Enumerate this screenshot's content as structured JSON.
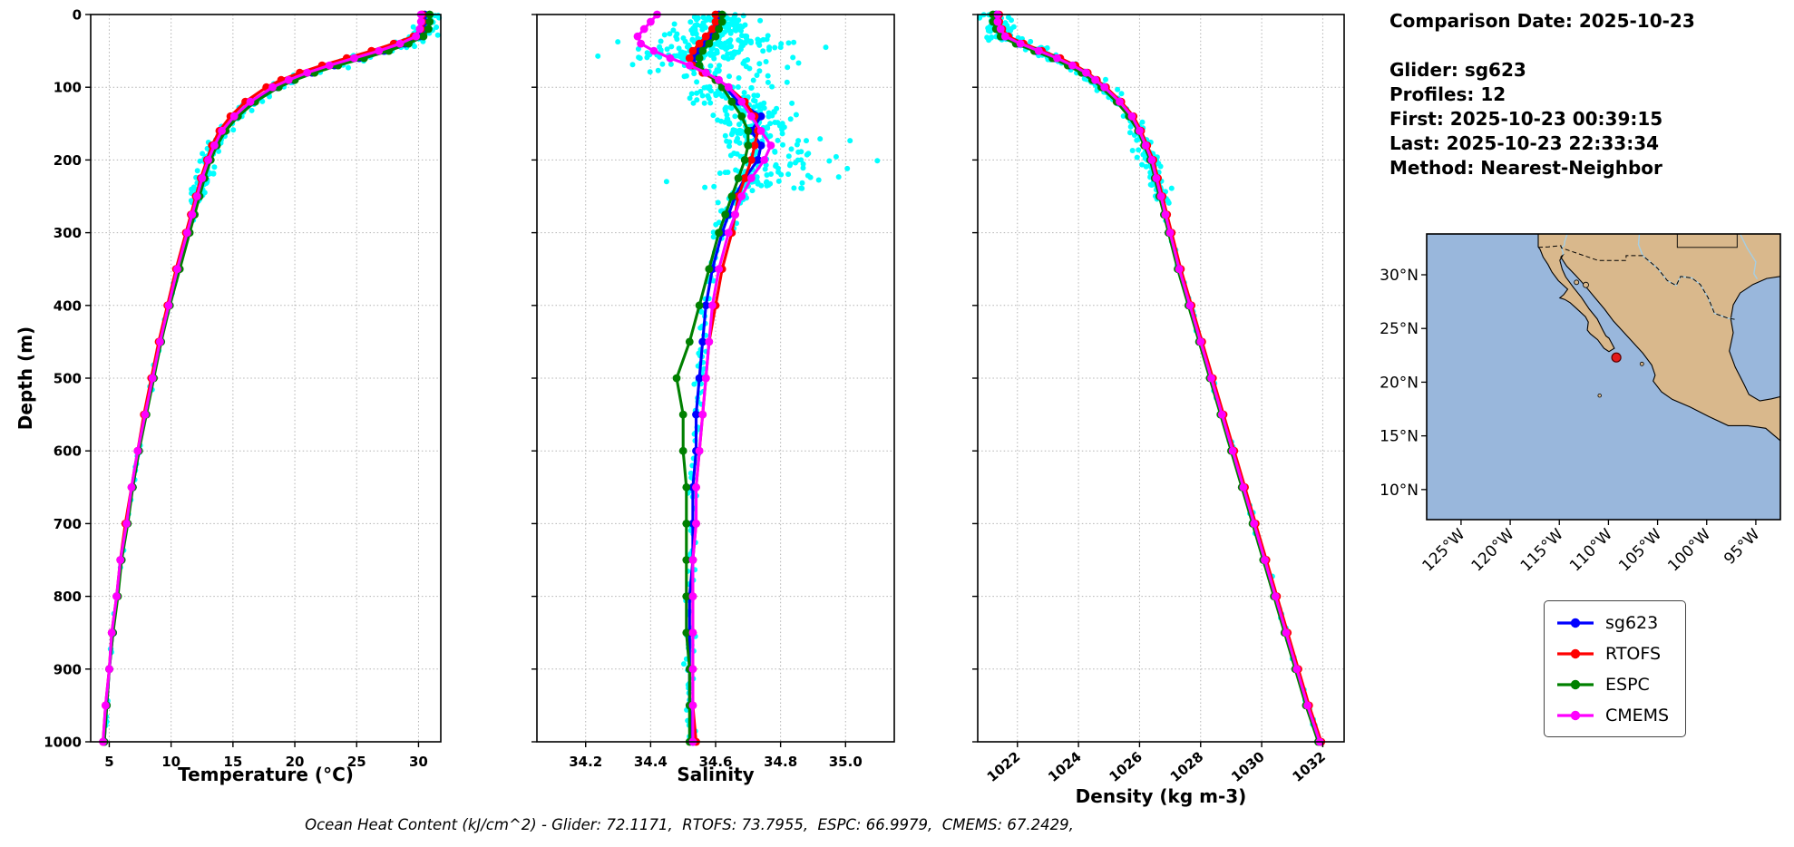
{
  "figure": {
    "background": "#ffffff",
    "info": {
      "lines": [
        "Comparison Date: 2025-10-23",
        "",
        "Glider: sg623",
        "Profiles: 12",
        "First: 2025-10-23 00:39:15",
        "Last: 2025-10-23 22:33:34",
        "Method: Nearest-Neighbor"
      ]
    },
    "caption": "Ocean Heat Content (kJ/cm^2) - Glider: 72.1171,  RTOFS: 73.7955,  ESPC: 66.9979,  CMEMS: 67.2429,",
    "legend": {
      "entries": [
        {
          "label": "sg623",
          "color": "#0000ff"
        },
        {
          "label": "RTOFS",
          "color": "#ff0000"
        },
        {
          "label": "ESPC",
          "color": "#008000"
        },
        {
          "label": "CMEMS",
          "color": "#ff00ff"
        }
      ]
    }
  },
  "chart_data": [
    {
      "type": "line",
      "title": "",
      "xlabel": "Temperature (°C)",
      "ylabel": "Depth (m)",
      "xlim": [
        3.5,
        31.8
      ],
      "ylim": [
        1000,
        0
      ],
      "xticks": [
        5,
        10,
        15,
        20,
        25,
        30
      ],
      "xtick_decimals": 0,
      "yticks": [
        0,
        100,
        200,
        300,
        400,
        500,
        600,
        700,
        800,
        900,
        1000
      ],
      "grid": true,
      "legend_position": "outside-right",
      "scatter_color": "#00ffff",
      "depths": [
        0,
        10,
        20,
        30,
        40,
        50,
        60,
        70,
        80,
        90,
        100,
        120,
        140,
        160,
        180,
        200,
        225,
        250,
        275,
        300,
        350,
        400,
        450,
        500,
        550,
        600,
        650,
        700,
        750,
        800,
        850,
        900,
        950,
        1000
      ],
      "series": [
        {
          "name": "sg623",
          "color": "#0000ff",
          "values": [
            30.5,
            30.5,
            30.4,
            30.1,
            28.9,
            27.2,
            25.2,
            23.2,
            21.4,
            19.9,
            18.6,
            16.7,
            15.3,
            14.3,
            13.6,
            13.1,
            12.6,
            12.2,
            11.8,
            11.4,
            10.6,
            9.8,
            9.1,
            8.5,
            7.9,
            7.4,
            6.9,
            6.4,
            6.0,
            5.6,
            5.3,
            5.0,
            4.8,
            4.6
          ]
        },
        {
          "name": "RTOFS",
          "color": "#ff0000",
          "values": [
            30.3,
            30.3,
            30.2,
            29.6,
            28.0,
            26.2,
            24.2,
            22.2,
            20.4,
            18.9,
            17.7,
            16.0,
            14.8,
            13.9,
            13.3,
            12.9,
            12.4,
            12.0,
            11.6,
            11.2,
            10.4,
            9.7,
            9.0,
            8.4,
            7.8,
            7.3,
            6.8,
            6.3,
            5.9,
            5.6,
            5.2,
            5.0,
            4.7,
            4.5
          ]
        },
        {
          "name": "ESPC",
          "color": "#008000",
          "values": [
            30.9,
            30.9,
            30.8,
            30.4,
            29.2,
            27.6,
            25.6,
            23.5,
            21.6,
            20.0,
            18.7,
            16.8,
            15.4,
            14.4,
            13.7,
            13.2,
            12.7,
            12.3,
            11.9,
            11.5,
            10.7,
            9.9,
            9.2,
            8.6,
            8.0,
            7.4,
            6.9,
            6.5,
            6.0,
            5.7,
            5.3,
            5.0,
            4.8,
            4.6
          ]
        },
        {
          "name": "CMEMS",
          "color": "#ff00ff",
          "values": [
            30.2,
            30.2,
            30.1,
            29.8,
            28.5,
            26.8,
            24.8,
            22.8,
            21.0,
            19.5,
            18.2,
            16.4,
            15.1,
            14.1,
            13.5,
            13.0,
            12.5,
            12.1,
            11.7,
            11.3,
            10.5,
            9.8,
            9.1,
            8.5,
            7.9,
            7.3,
            6.8,
            6.4,
            5.9,
            5.6,
            5.2,
            5.0,
            4.7,
            4.5
          ]
        }
      ]
    },
    {
      "type": "line",
      "title": "",
      "xlabel": "Salinity",
      "ylabel": "Depth (m)",
      "xlim": [
        34.05,
        35.15
      ],
      "ylim": [
        1000,
        0
      ],
      "xticks": [
        34.2,
        34.4,
        34.6,
        34.8,
        35.0
      ],
      "xtick_decimals": 1,
      "yticks": [
        0,
        100,
        200,
        300,
        400,
        500,
        600,
        700,
        800,
        900,
        1000
      ],
      "grid": true,
      "scatter_color": "#00ffff",
      "depths": [
        0,
        10,
        20,
        30,
        40,
        50,
        60,
        70,
        80,
        90,
        100,
        120,
        140,
        160,
        180,
        200,
        225,
        250,
        275,
        300,
        350,
        400,
        450,
        500,
        550,
        600,
        650,
        700,
        750,
        800,
        850,
        900,
        950,
        1000
      ],
      "series": [
        {
          "name": "sg623",
          "color": "#0000ff",
          "values": [
            34.61,
            34.61,
            34.6,
            34.59,
            34.57,
            34.55,
            34.53,
            34.54,
            34.57,
            34.6,
            34.63,
            34.67,
            34.74,
            34.71,
            34.74,
            34.73,
            34.69,
            34.66,
            34.64,
            34.62,
            34.59,
            34.57,
            34.56,
            34.55,
            34.54,
            34.54,
            34.53,
            34.53,
            34.53,
            34.52,
            34.52,
            34.52,
            34.52,
            34.53
          ]
        },
        {
          "name": "RTOFS",
          "color": "#ff0000",
          "values": [
            34.6,
            34.6,
            34.59,
            34.57,
            34.55,
            34.53,
            34.52,
            34.53,
            34.56,
            34.6,
            34.64,
            34.69,
            34.72,
            34.73,
            34.72,
            34.71,
            34.69,
            34.67,
            34.66,
            34.65,
            34.62,
            34.6,
            34.58,
            34.57,
            34.56,
            34.55,
            34.54,
            34.54,
            34.53,
            34.53,
            34.53,
            34.53,
            34.53,
            34.54
          ]
        },
        {
          "name": "ESPC",
          "color": "#008000",
          "values": [
            34.62,
            34.62,
            34.61,
            34.6,
            34.58,
            34.56,
            34.55,
            34.55,
            34.57,
            34.6,
            34.62,
            34.65,
            34.68,
            34.7,
            34.7,
            34.69,
            34.67,
            34.65,
            34.63,
            34.61,
            34.58,
            34.55,
            34.52,
            34.48,
            34.5,
            34.5,
            34.51,
            34.51,
            34.51,
            34.51,
            34.51,
            34.52,
            34.52,
            34.52
          ]
        },
        {
          "name": "CMEMS",
          "color": "#ff00ff",
          "values": [
            34.42,
            34.4,
            34.38,
            34.36,
            34.37,
            34.41,
            34.46,
            34.52,
            34.57,
            34.61,
            34.64,
            34.68,
            34.71,
            34.74,
            34.77,
            34.75,
            34.71,
            34.68,
            34.66,
            34.64,
            34.61,
            34.59,
            34.58,
            34.57,
            34.56,
            34.55,
            34.54,
            34.54,
            34.53,
            34.53,
            34.53,
            34.53,
            34.53,
            34.53
          ]
        }
      ]
    },
    {
      "type": "line",
      "title": "",
      "xlabel": "Density (kg m-3)",
      "ylabel": "Depth (m)",
      "xlim": [
        1020.7,
        1032.7
      ],
      "ylim": [
        1000,
        0
      ],
      "xticks": [
        1022,
        1024,
        1026,
        1028,
        1030,
        1032
      ],
      "xtick_decimals": 0,
      "yticks": [
        0,
        100,
        200,
        300,
        400,
        500,
        600,
        700,
        800,
        900,
        1000
      ],
      "grid": true,
      "scatter_color": "#00ffff",
      "depths": [
        0,
        10,
        20,
        30,
        40,
        50,
        60,
        70,
        80,
        90,
        100,
        120,
        140,
        160,
        180,
        200,
        225,
        250,
        275,
        300,
        350,
        400,
        450,
        500,
        550,
        600,
        650,
        700,
        750,
        800,
        850,
        900,
        950,
        1000
      ],
      "series": [
        {
          "name": "sg623",
          "color": "#0000ff",
          "values": [
            1021.3,
            1021.3,
            1021.4,
            1021.5,
            1022.0,
            1022.6,
            1023.2,
            1023.7,
            1024.2,
            1024.5,
            1024.8,
            1025.3,
            1025.7,
            1026.0,
            1026.2,
            1026.4,
            1026.55,
            1026.7,
            1026.85,
            1027.0,
            1027.3,
            1027.65,
            1028.0,
            1028.35,
            1028.7,
            1029.05,
            1029.4,
            1029.75,
            1030.1,
            1030.45,
            1030.8,
            1031.15,
            1031.5,
            1031.9
          ]
        },
        {
          "name": "RTOFS",
          "color": "#ff0000",
          "values": [
            1021.4,
            1021.4,
            1021.5,
            1021.7,
            1022.2,
            1022.8,
            1023.4,
            1023.9,
            1024.3,
            1024.6,
            1024.9,
            1025.4,
            1025.8,
            1026.05,
            1026.25,
            1026.45,
            1026.6,
            1026.75,
            1026.9,
            1027.05,
            1027.35,
            1027.7,
            1028.05,
            1028.4,
            1028.75,
            1029.1,
            1029.45,
            1029.8,
            1030.15,
            1030.5,
            1030.85,
            1031.2,
            1031.55,
            1031.95
          ]
        },
        {
          "name": "ESPC",
          "color": "#008000",
          "values": [
            1021.2,
            1021.2,
            1021.3,
            1021.45,
            1021.95,
            1022.55,
            1023.15,
            1023.65,
            1024.1,
            1024.45,
            1024.75,
            1025.25,
            1025.65,
            1025.95,
            1026.15,
            1026.35,
            1026.5,
            1026.65,
            1026.8,
            1026.95,
            1027.25,
            1027.6,
            1027.95,
            1028.3,
            1028.65,
            1029.0,
            1029.35,
            1029.7,
            1030.05,
            1030.4,
            1030.75,
            1031.1,
            1031.45,
            1031.85
          ]
        },
        {
          "name": "CMEMS",
          "color": "#ff00ff",
          "values": [
            1021.35,
            1021.35,
            1021.45,
            1021.6,
            1022.1,
            1022.7,
            1023.3,
            1023.8,
            1024.25,
            1024.55,
            1024.85,
            1025.35,
            1025.75,
            1026.0,
            1026.2,
            1026.4,
            1026.55,
            1026.7,
            1026.85,
            1027.0,
            1027.3,
            1027.65,
            1028.0,
            1028.35,
            1028.7,
            1029.05,
            1029.4,
            1029.75,
            1030.1,
            1030.45,
            1030.8,
            1031.15,
            1031.5,
            1031.9
          ]
        }
      ]
    }
  ],
  "map": {
    "extent": {
      "lon": [
        -128.5,
        -92.5
      ],
      "lat": [
        7.2,
        33.8
      ]
    },
    "lat_tick_values": [
      30,
      25,
      20,
      15,
      10
    ],
    "lat_tick_labels": [
      "30°N",
      "25°N",
      "20°N",
      "15°N",
      "10°N"
    ],
    "lon_tick_values": [
      -125,
      -120,
      -115,
      -110,
      -105,
      -100,
      -95
    ],
    "lon_tick_labels": [
      "125°W",
      "120°W",
      "115°W",
      "110°W",
      "105°W",
      "100°W",
      "95°W"
    ],
    "marker": {
      "lon": -109.2,
      "lat": 22.3,
      "color": "#e31a1c"
    },
    "colors": {
      "ocean": "#99b7dc",
      "land": "#d9b88c",
      "coast": "#000000",
      "river": "#a6cee3",
      "border": "#000000"
    }
  }
}
